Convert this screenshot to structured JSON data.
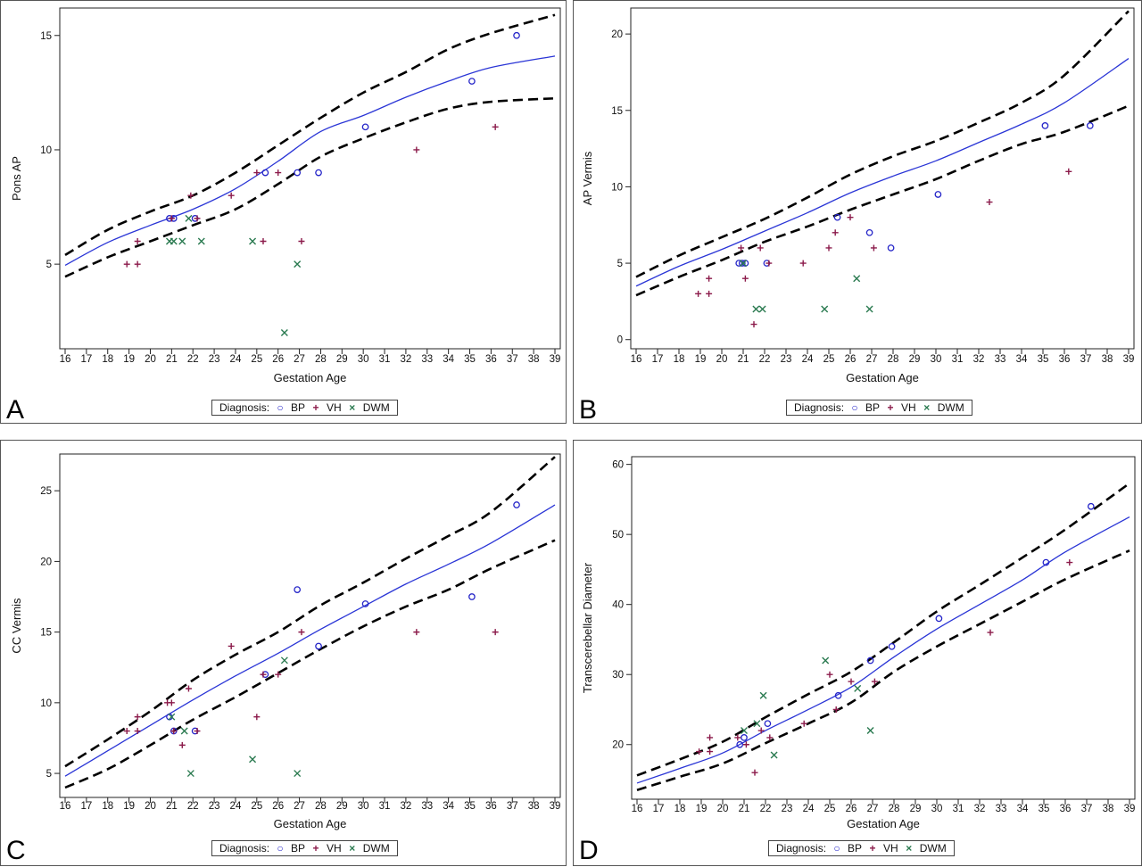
{
  "colors": {
    "bp": "#2424c8",
    "vh": "#8b1a4a",
    "dwm": "#2a7a50",
    "fit": "#2a35d6",
    "ci": "#000000"
  },
  "legend": {
    "title": "Diagnosis:",
    "bp": "BP",
    "vh": "VH",
    "dwm": "DWM"
  },
  "chart_data": [
    {
      "type": "scatter",
      "letter": "A",
      "xlabel": "Gestation Age",
      "ylabel": "Pons AP",
      "xlim": [
        16,
        39
      ],
      "ylim": [
        1.3,
        16.2
      ],
      "xticks": [
        16,
        17,
        18,
        19,
        20,
        21,
        22,
        23,
        24,
        25,
        26,
        27,
        28,
        29,
        30,
        31,
        32,
        33,
        34,
        35,
        36,
        37,
        38,
        39
      ],
      "yticks": [
        5,
        10,
        15
      ],
      "series": [
        {
          "name": "BP",
          "marker": "circle",
          "points": [
            [
              20.9,
              7
            ],
            [
              21.1,
              7
            ],
            [
              22.1,
              7
            ],
            [
              25.4,
              9
            ],
            [
              26.9,
              9
            ],
            [
              27.9,
              9
            ],
            [
              30.1,
              11
            ],
            [
              35.1,
              13
            ],
            [
              37.2,
              15
            ]
          ]
        },
        {
          "name": "VH",
          "marker": "plus",
          "points": [
            [
              18.9,
              5
            ],
            [
              19.4,
              6
            ],
            [
              19.4,
              5
            ],
            [
              21,
              7
            ],
            [
              21.9,
              8
            ],
            [
              22.2,
              7
            ],
            [
              23.8,
              8
            ],
            [
              25,
              9
            ],
            [
              25.3,
              6
            ],
            [
              26,
              9
            ],
            [
              27.1,
              6
            ],
            [
              32.5,
              10
            ],
            [
              36.2,
              11
            ]
          ]
        },
        {
          "name": "DWM",
          "marker": "x",
          "points": [
            [
              20.9,
              6
            ],
            [
              21.1,
              6
            ],
            [
              21.5,
              6
            ],
            [
              21.8,
              7
            ],
            [
              22.4,
              6
            ],
            [
              24.8,
              6
            ],
            [
              26.3,
              2
            ],
            [
              26.9,
              5
            ]
          ]
        }
      ],
      "fit": [
        [
          16,
          4.95
        ],
        [
          18,
          5.95
        ],
        [
          20,
          6.7
        ],
        [
          22,
          7.4
        ],
        [
          24,
          8.3
        ],
        [
          26,
          9.5
        ],
        [
          28,
          10.8
        ],
        [
          30,
          11.5
        ],
        [
          32,
          12.3
        ],
        [
          34,
          13.0
        ],
        [
          36,
          13.6
        ],
        [
          39,
          14.1
        ]
      ],
      "ci_upper": [
        [
          16,
          5.4
        ],
        [
          18,
          6.5
        ],
        [
          20,
          7.3
        ],
        [
          22,
          8.0
        ],
        [
          24,
          9.0
        ],
        [
          26,
          10.2
        ],
        [
          28,
          11.4
        ],
        [
          30,
          12.5
        ],
        [
          32,
          13.4
        ],
        [
          34,
          14.4
        ],
        [
          36,
          15.1
        ],
        [
          39,
          15.9
        ]
      ],
      "ci_lower": [
        [
          16,
          4.45
        ],
        [
          18,
          5.3
        ],
        [
          20,
          6.0
        ],
        [
          22,
          6.7
        ],
        [
          24,
          7.4
        ],
        [
          26,
          8.5
        ],
        [
          28,
          9.7
        ],
        [
          30,
          10.5
        ],
        [
          32,
          11.2
        ],
        [
          34,
          11.8
        ],
        [
          36,
          12.1
        ],
        [
          39,
          12.25
        ]
      ]
    },
    {
      "type": "scatter",
      "letter": "B",
      "xlabel": "Gestation Age",
      "ylabel": "AP Vermis",
      "xlim": [
        16,
        39
      ],
      "ylim": [
        -0.6,
        21.7
      ],
      "xticks": [
        16,
        17,
        18,
        19,
        20,
        21,
        22,
        23,
        24,
        25,
        26,
        27,
        28,
        29,
        30,
        31,
        32,
        33,
        34,
        35,
        36,
        37,
        38,
        39
      ],
      "yticks": [
        0,
        5,
        10,
        15,
        20
      ],
      "series": [
        {
          "name": "BP",
          "marker": "circle",
          "points": [
            [
              20.8,
              5
            ],
            [
              20.95,
              5
            ],
            [
              21.1,
              5
            ],
            [
              22.1,
              5
            ],
            [
              25.4,
              8
            ],
            [
              26.9,
              7
            ],
            [
              27.9,
              6
            ],
            [
              30.1,
              9.5
            ],
            [
              35.1,
              14
            ],
            [
              37.2,
              14
            ]
          ]
        },
        {
          "name": "VH",
          "marker": "plus",
          "points": [
            [
              18.9,
              3
            ],
            [
              19.4,
              3
            ],
            [
              19.4,
              4
            ],
            [
              20.9,
              6
            ],
            [
              21.1,
              4
            ],
            [
              21.5,
              1
            ],
            [
              21.8,
              6
            ],
            [
              22.2,
              5
            ],
            [
              23.8,
              5
            ],
            [
              25,
              6
            ],
            [
              25.3,
              7
            ],
            [
              26,
              8
            ],
            [
              27.1,
              6
            ],
            [
              32.5,
              9
            ],
            [
              36.2,
              11
            ]
          ]
        },
        {
          "name": "DWM",
          "marker": "x",
          "points": [
            [
              21,
              5
            ],
            [
              21.6,
              2
            ],
            [
              21.9,
              2
            ],
            [
              24.8,
              2
            ],
            [
              26.3,
              4
            ],
            [
              26.9,
              2
            ]
          ]
        }
      ],
      "fit": [
        [
          16,
          3.5
        ],
        [
          18,
          4.8
        ],
        [
          20,
          5.9
        ],
        [
          22,
          7.1
        ],
        [
          24,
          8.3
        ],
        [
          26,
          9.6
        ],
        [
          28,
          10.7
        ],
        [
          30,
          11.7
        ],
        [
          32,
          12.9
        ],
        [
          34,
          14.1
        ],
        [
          36,
          15.5
        ],
        [
          39,
          18.4
        ]
      ],
      "ci_upper": [
        [
          16,
          4.1
        ],
        [
          18,
          5.5
        ],
        [
          20,
          6.7
        ],
        [
          22,
          7.9
        ],
        [
          24,
          9.3
        ],
        [
          26,
          10.8
        ],
        [
          28,
          12.0
        ],
        [
          30,
          13.0
        ],
        [
          32,
          14.2
        ],
        [
          34,
          15.5
        ],
        [
          36,
          17.3
        ],
        [
          39,
          21.5
        ]
      ],
      "ci_lower": [
        [
          16,
          2.9
        ],
        [
          18,
          4.1
        ],
        [
          20,
          5.2
        ],
        [
          22,
          6.4
        ],
        [
          24,
          7.4
        ],
        [
          26,
          8.5
        ],
        [
          28,
          9.5
        ],
        [
          30,
          10.5
        ],
        [
          32,
          11.7
        ],
        [
          34,
          12.8
        ],
        [
          36,
          13.6
        ],
        [
          39,
          15.3
        ]
      ]
    },
    {
      "type": "scatter",
      "letter": "C",
      "xlabel": "Gestation Age",
      "ylabel": "CC Vermis",
      "xlim": [
        16,
        39
      ],
      "ylim": [
        3.3,
        27.6
      ],
      "xticks": [
        16,
        17,
        18,
        19,
        20,
        21,
        22,
        23,
        24,
        25,
        26,
        27,
        28,
        29,
        30,
        31,
        32,
        33,
        34,
        35,
        36,
        37,
        38,
        39
      ],
      "yticks": [
        5,
        10,
        15,
        20,
        25
      ],
      "series": [
        {
          "name": "BP",
          "marker": "circle",
          "points": [
            [
              20.9,
              9
            ],
            [
              21.1,
              8
            ],
            [
              22.1,
              8
            ],
            [
              25.4,
              12
            ],
            [
              26.9,
              18
            ],
            [
              27.9,
              14
            ],
            [
              30.1,
              17
            ],
            [
              35.1,
              17.5
            ],
            [
              37.2,
              24
            ]
          ]
        },
        {
          "name": "VH",
          "marker": "plus",
          "points": [
            [
              18.9,
              8
            ],
            [
              19.4,
              8
            ],
            [
              19.4,
              9
            ],
            [
              20.8,
              10
            ],
            [
              21,
              10
            ],
            [
              21.1,
              8
            ],
            [
              21.5,
              7
            ],
            [
              21.8,
              11
            ],
            [
              22.2,
              8
            ],
            [
              23.8,
              14
            ],
            [
              25,
              9
            ],
            [
              25.3,
              12
            ],
            [
              26,
              12
            ],
            [
              27.1,
              15
            ],
            [
              32.5,
              15
            ],
            [
              36.2,
              15
            ]
          ]
        },
        {
          "name": "DWM",
          "marker": "x",
          "points": [
            [
              21,
              9
            ],
            [
              21.6,
              8
            ],
            [
              21.9,
              5
            ],
            [
              24.8,
              6
            ],
            [
              26.3,
              13
            ],
            [
              26.9,
              5
            ]
          ]
        }
      ],
      "fit": [
        [
          16,
          4.8
        ],
        [
          18,
          6.6
        ],
        [
          20,
          8.4
        ],
        [
          22,
          10.2
        ],
        [
          24,
          11.9
        ],
        [
          26,
          13.5
        ],
        [
          28,
          15.2
        ],
        [
          30,
          16.8
        ],
        [
          32,
          18.4
        ],
        [
          34,
          19.8
        ],
        [
          36,
          21.3
        ],
        [
          39,
          24.0
        ]
      ],
      "ci_upper": [
        [
          16,
          5.5
        ],
        [
          18,
          7.4
        ],
        [
          20,
          9.4
        ],
        [
          22,
          11.6
        ],
        [
          24,
          13.4
        ],
        [
          26,
          15.0
        ],
        [
          28,
          16.9
        ],
        [
          30,
          18.5
        ],
        [
          32,
          20.2
        ],
        [
          34,
          21.8
        ],
        [
          36,
          23.5
        ],
        [
          39,
          27.4
        ]
      ],
      "ci_lower": [
        [
          16,
          4.0
        ],
        [
          18,
          5.3
        ],
        [
          20,
          7.0
        ],
        [
          22,
          8.8
        ],
        [
          24,
          10.4
        ],
        [
          26,
          12.1
        ],
        [
          28,
          13.8
        ],
        [
          30,
          15.4
        ],
        [
          32,
          16.8
        ],
        [
          34,
          18.0
        ],
        [
          36,
          19.5
        ],
        [
          39,
          21.5
        ]
      ]
    },
    {
      "type": "scatter",
      "letter": "D",
      "xlabel": "Gestation Age",
      "ylabel": "Transcerebellar Diameter",
      "xlim": [
        16,
        39
      ],
      "ylim": [
        12.2,
        61.1
      ],
      "xticks": [
        16,
        17,
        18,
        19,
        20,
        21,
        22,
        23,
        24,
        25,
        26,
        27,
        28,
        29,
        30,
        31,
        32,
        33,
        34,
        35,
        36,
        37,
        38,
        39
      ],
      "yticks": [
        20,
        30,
        40,
        50,
        60
      ],
      "series": [
        {
          "name": "BP",
          "marker": "circle",
          "points": [
            [
              20.8,
              20
            ],
            [
              21,
              21
            ],
            [
              22.1,
              23
            ],
            [
              25.4,
              27
            ],
            [
              26.9,
              32
            ],
            [
              27.9,
              34
            ],
            [
              30.1,
              38
            ],
            [
              35.1,
              46
            ],
            [
              37.2,
              54
            ]
          ]
        },
        {
          "name": "VH",
          "marker": "plus",
          "points": [
            [
              18.9,
              19
            ],
            [
              19.4,
              19
            ],
            [
              19.4,
              21
            ],
            [
              20.7,
              21
            ],
            [
              21.1,
              20
            ],
            [
              21.5,
              16
            ],
            [
              21.8,
              22
            ],
            [
              22.2,
              21
            ],
            [
              23.8,
              23
            ],
            [
              25,
              30
            ],
            [
              25.3,
              25
            ],
            [
              26,
              29
            ],
            [
              27.1,
              29
            ],
            [
              32.5,
              36
            ],
            [
              36.2,
              46
            ]
          ]
        },
        {
          "name": "DWM",
          "marker": "x",
          "points": [
            [
              21,
              22
            ],
            [
              21.6,
              23
            ],
            [
              21.9,
              27
            ],
            [
              22.4,
              18.5
            ],
            [
              24.8,
              32
            ],
            [
              26.3,
              28
            ],
            [
              26.9,
              22
            ]
          ]
        }
      ],
      "fit": [
        [
          16,
          14.5
        ],
        [
          18,
          16.6
        ],
        [
          20,
          18.8
        ],
        [
          22,
          22.0
        ],
        [
          24,
          25.0
        ],
        [
          26,
          28.2
        ],
        [
          28,
          32.5
        ],
        [
          30,
          36.5
        ],
        [
          32,
          40.0
        ],
        [
          34,
          43.5
        ],
        [
          36,
          47.5
        ],
        [
          39,
          52.5
        ]
      ],
      "ci_upper": [
        [
          16,
          15.6
        ],
        [
          18,
          17.9
        ],
        [
          20,
          20.4
        ],
        [
          22,
          23.9
        ],
        [
          24,
          27.2
        ],
        [
          26,
          30.4
        ],
        [
          28,
          34.6
        ],
        [
          30,
          39.0
        ],
        [
          32,
          42.8
        ],
        [
          34,
          46.7
        ],
        [
          36,
          50.7
        ],
        [
          39,
          57.3
        ]
      ],
      "ci_lower": [
        [
          16,
          13.5
        ],
        [
          18,
          15.4
        ],
        [
          20,
          17.3
        ],
        [
          22,
          20.2
        ],
        [
          24,
          23.0
        ],
        [
          26,
          26.0
        ],
        [
          28,
          30.4
        ],
        [
          30,
          34.0
        ],
        [
          32,
          37.2
        ],
        [
          34,
          40.4
        ],
        [
          36,
          43.6
        ],
        [
          39,
          47.7
        ]
      ]
    }
  ]
}
